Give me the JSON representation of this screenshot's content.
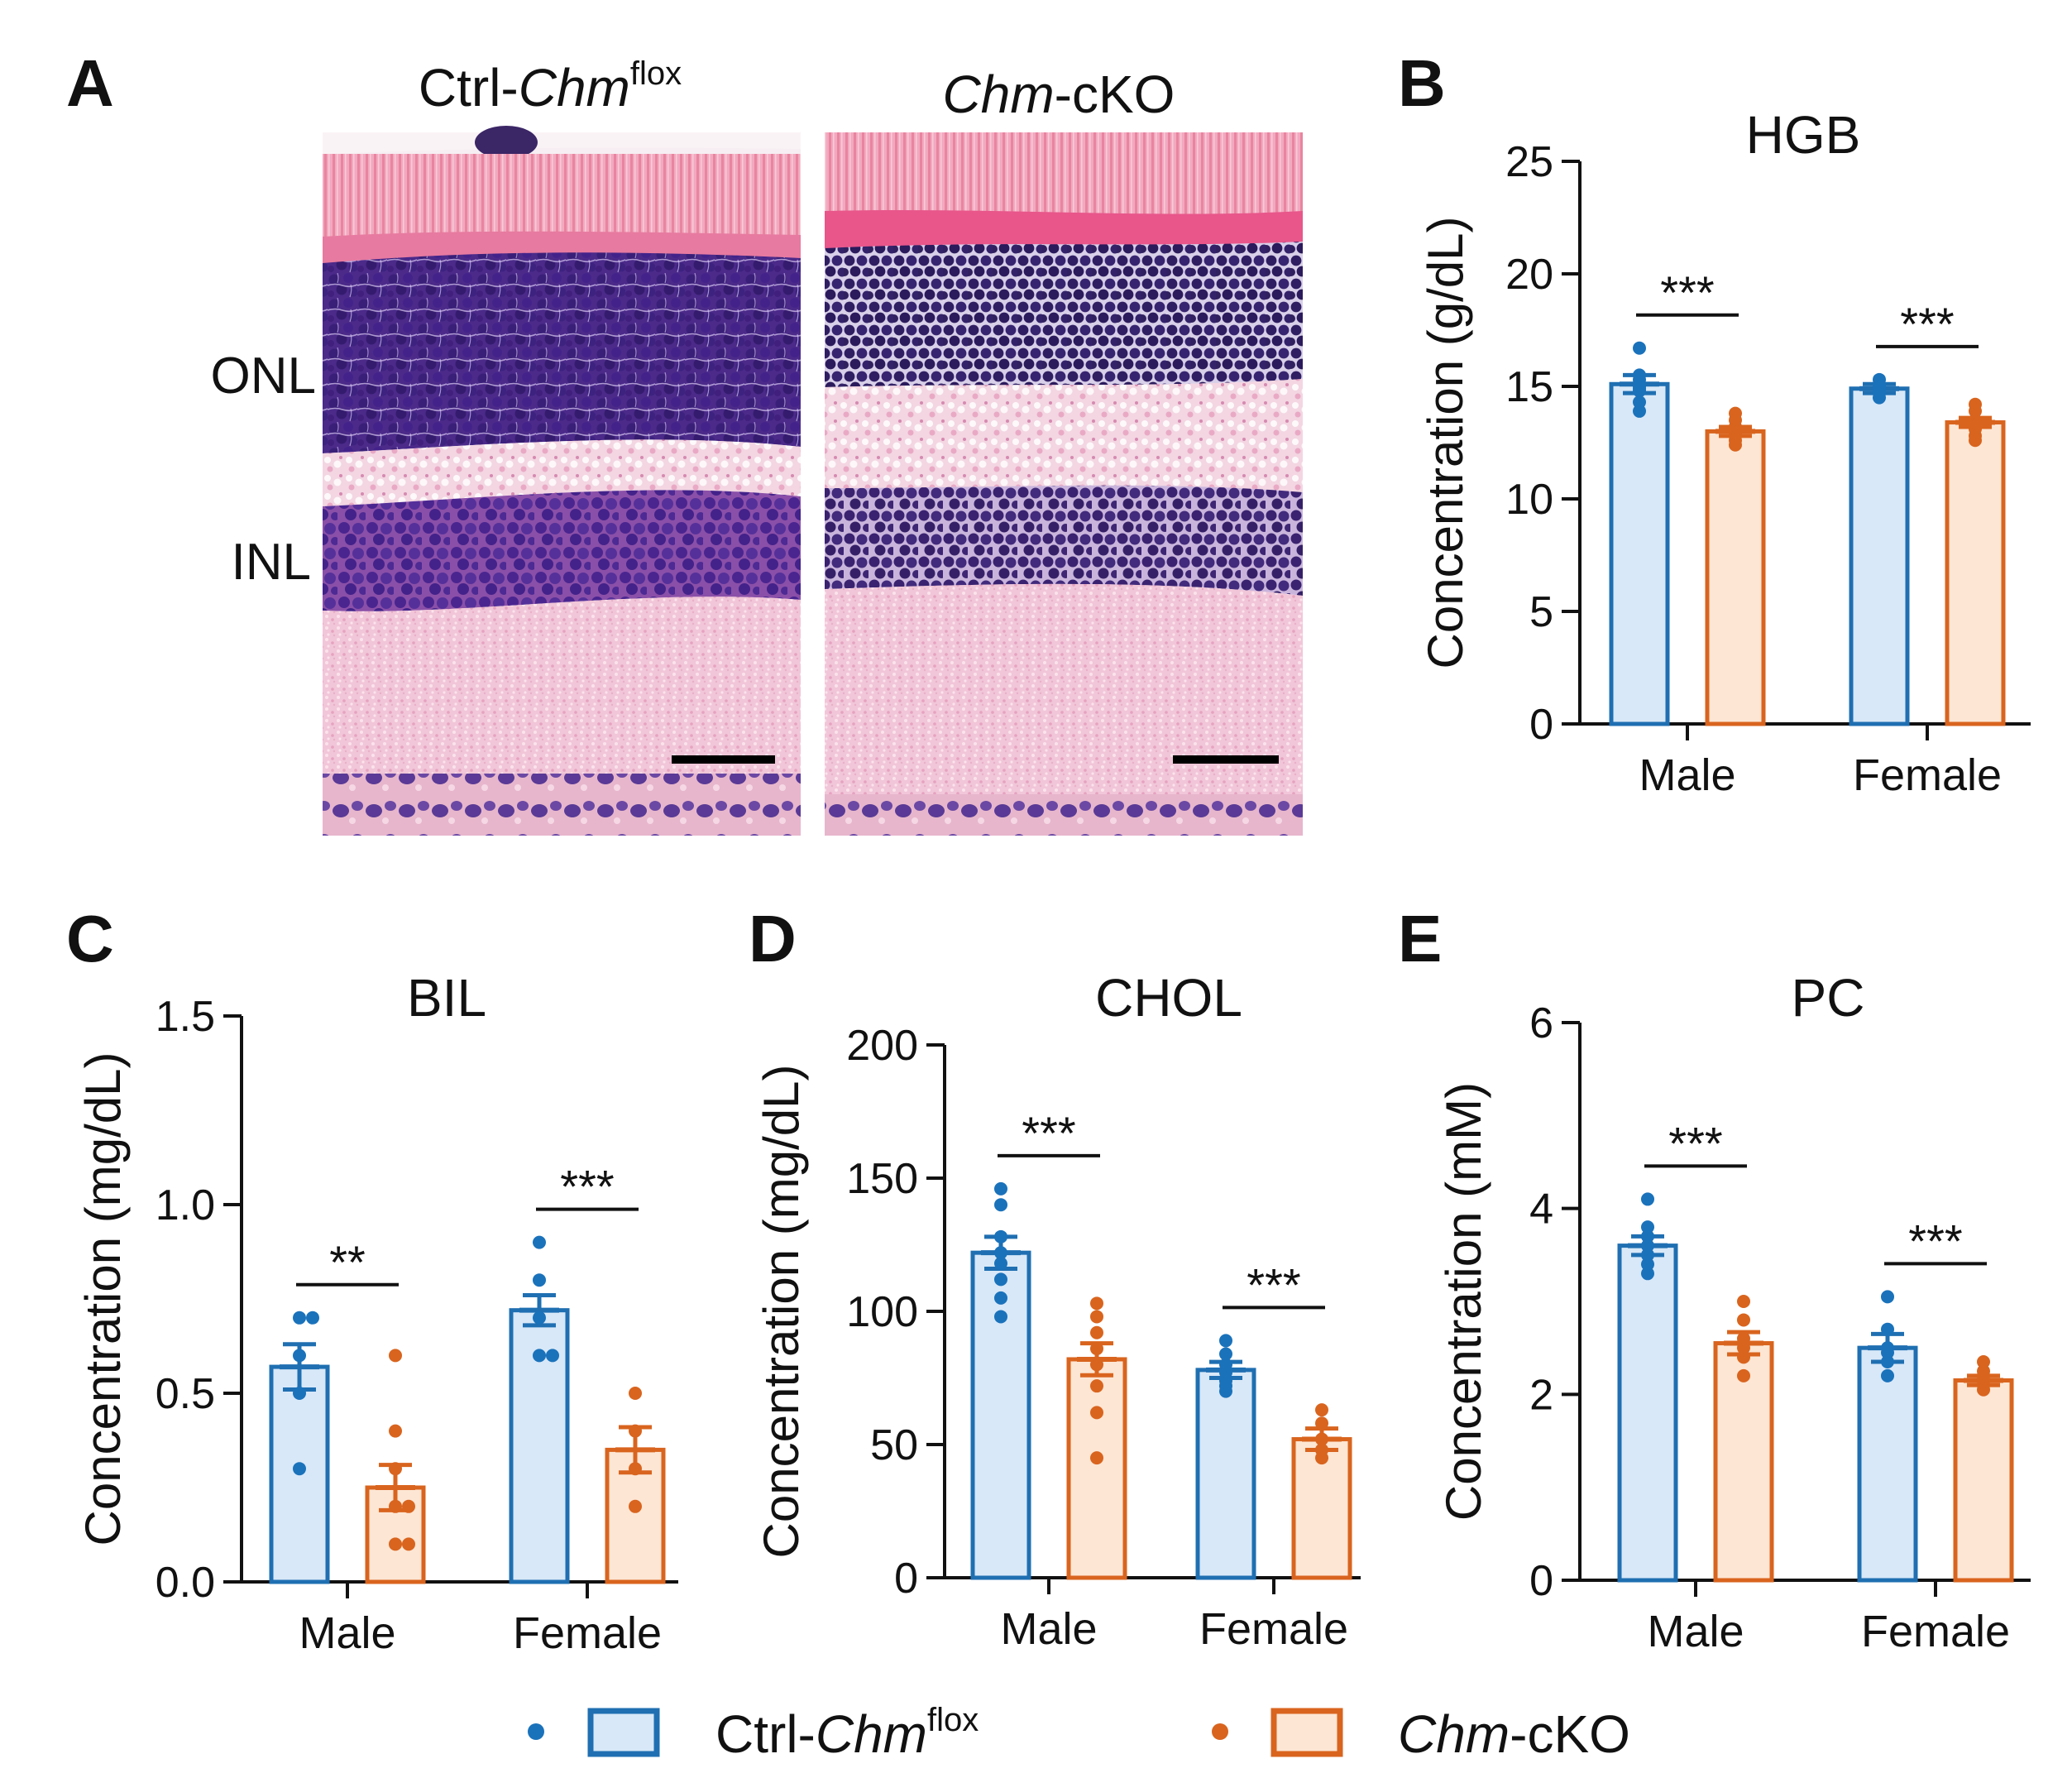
{
  "panel_labels": {
    "a": "A",
    "b": "B",
    "c": "C",
    "d": "D",
    "e": "E"
  },
  "histology": {
    "left_title": {
      "prefix": "Ctrl-",
      "italic": "Chm",
      "sup": "flox"
    },
    "right_title": {
      "italic": "Chm",
      "suffix": "-cKO"
    },
    "layer_labels": [
      "ONL",
      "INL"
    ]
  },
  "colors": {
    "ctrl_edge": "#1f6fb2",
    "ctrl_fill": "#d8e8f8",
    "ctrl_dot": "#1a72bb",
    "cko_edge": "#d9641e",
    "cko_fill": "#fde6d4",
    "cko_dot": "#d9641e"
  },
  "legend": {
    "ctrl": {
      "prefix": "Ctrl-",
      "italic": "Chm",
      "sup": "flox"
    },
    "cko": {
      "italic": "Chm",
      "suffix": "-cKO"
    }
  },
  "chart_data": [
    {
      "id": "hgb",
      "type": "bar",
      "title": "HGB",
      "ylabel": "Concentration (g/dL)",
      "ylim": [
        0,
        25
      ],
      "yticks": [
        0,
        5,
        10,
        15,
        20,
        25
      ],
      "ytick_labels": [
        "0",
        "5",
        "10",
        "15",
        "20",
        "25"
      ],
      "categories": [
        "Male",
        "Female"
      ],
      "series": [
        {
          "name": "Ctrl-Chmflox",
          "values": [
            15.1,
            14.9
          ],
          "sem": [
            0.4,
            0.2
          ],
          "points": [
            [
              16.7,
              15.5,
              15.3,
              15.0,
              14.9,
              14.8,
              14.3,
              13.9
            ],
            [
              15.3,
              15.1,
              15.0,
              14.9,
              14.8,
              14.7,
              14.5
            ]
          ]
        },
        {
          "name": "Chm-cKO",
          "values": [
            13.0,
            13.4
          ],
          "sem": [
            0.2,
            0.2
          ],
          "points": [
            [
              13.8,
              13.5,
              13.2,
              13.0,
              12.9,
              12.8,
              12.6,
              12.4
            ],
            [
              14.2,
              13.9,
              13.5,
              13.3,
              13.1,
              12.8,
              12.6
            ]
          ]
        }
      ],
      "significance": [
        "***",
        "***"
      ]
    },
    {
      "id": "bil",
      "type": "bar",
      "title": "BIL",
      "ylabel": "Concentration (mg/dL)",
      "ylim": [
        0,
        1.5
      ],
      "yticks": [
        0,
        0.5,
        1.0,
        1.5
      ],
      "ytick_labels": [
        "0.0",
        "0.5",
        "1.0",
        "1.5"
      ],
      "categories": [
        "Male",
        "Female"
      ],
      "series": [
        {
          "name": "Ctrl-Chmflox",
          "values": [
            0.57,
            0.72
          ],
          "sem": [
            0.06,
            0.04
          ],
          "points": [
            [
              0.7,
              0.7,
              0.6,
              0.5,
              0.3
            ],
            [
              0.9,
              0.8,
              0.7,
              0.6,
              0.6
            ]
          ]
        },
        {
          "name": "Chm-cKO",
          "values": [
            0.25,
            0.35
          ],
          "sem": [
            0.06,
            0.06
          ],
          "points": [
            [
              0.6,
              0.4,
              0.3,
              0.2,
              0.2,
              0.1,
              0.1
            ],
            [
              0.5,
              0.4,
              0.3,
              0.2
            ]
          ]
        }
      ],
      "significance": [
        "**",
        "***"
      ]
    },
    {
      "id": "chol",
      "type": "bar",
      "title": "CHOL",
      "ylabel": "Concentration (mg/dL)",
      "ylim": [
        0,
        200
      ],
      "yticks": [
        0,
        50,
        100,
        150,
        200
      ],
      "ytick_labels": [
        "0",
        "50",
        "100",
        "150",
        "200"
      ],
      "categories": [
        "Male",
        "Female"
      ],
      "series": [
        {
          "name": "Ctrl-Chmflox",
          "values": [
            122,
            78
          ],
          "sem": [
            6,
            3
          ],
          "points": [
            [
              146,
              140,
              128,
              122,
              118,
              112,
              105,
              98
            ],
            [
              89,
              84,
              80,
              77,
              74,
              72,
              70
            ]
          ]
        },
        {
          "name": "Chm-cKO",
          "values": [
            82,
            52
          ],
          "sem": [
            6,
            4
          ],
          "points": [
            [
              103,
              98,
              92,
              86,
              80,
              72,
              62,
              45
            ],
            [
              63,
              58,
              52,
              48,
              45
            ]
          ]
        }
      ],
      "significance": [
        "***",
        "***"
      ]
    },
    {
      "id": "pc",
      "type": "bar",
      "title": "PC",
      "ylabel": "Concentration (mM)",
      "ylim": [
        0,
        6
      ],
      "yticks": [
        0,
        2,
        4,
        6
      ],
      "ytick_labels": [
        "0",
        "2",
        "4",
        "6"
      ],
      "categories": [
        "Male",
        "Female"
      ],
      "series": [
        {
          "name": "Ctrl-Chmflox",
          "values": [
            3.6,
            2.5
          ],
          "sem": [
            0.1,
            0.15
          ],
          "points": [
            [
              4.1,
              3.8,
              3.7,
              3.6,
              3.5,
              3.4,
              3.3
            ],
            [
              3.05,
              2.7,
              2.5,
              2.45,
              2.35,
              2.2
            ]
          ]
        },
        {
          "name": "Chm-cKO",
          "values": [
            2.55,
            2.15
          ],
          "sem": [
            0.12,
            0.05
          ],
          "points": [
            [
              3.0,
              2.8,
              2.6,
              2.5,
              2.4,
              2.2
            ],
            [
              2.35,
              2.25,
              2.2,
              2.15,
              2.1,
              2.05
            ]
          ]
        }
      ],
      "significance": [
        "***",
        "***"
      ]
    }
  ]
}
